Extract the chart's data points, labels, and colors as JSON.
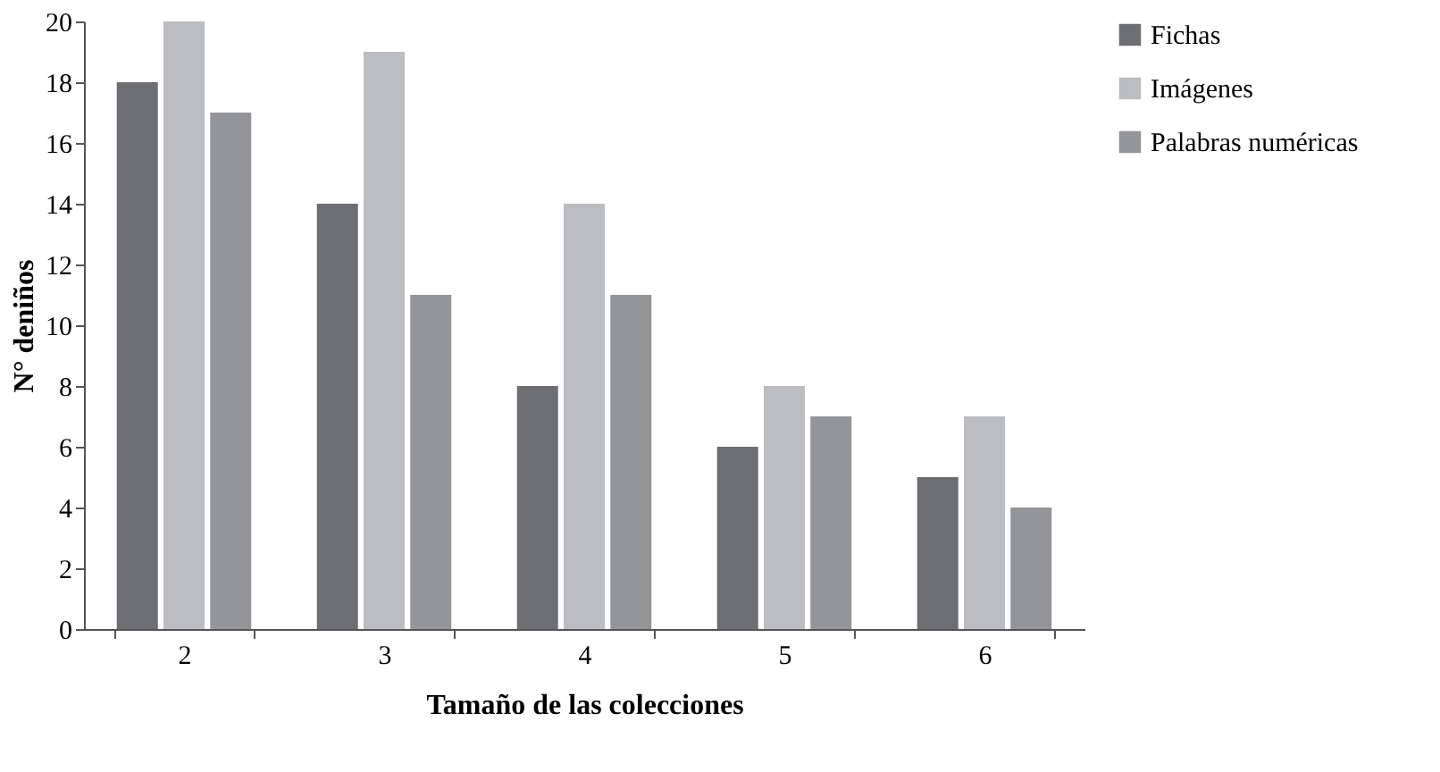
{
  "chart_data": {
    "type": "bar",
    "xlabel": "Tamaño de las colecciones",
    "ylabel": "N° deniños",
    "categories": [
      "2",
      "3",
      "4",
      "5",
      "6"
    ],
    "series": [
      {
        "name": "Fichas",
        "color": "#6d6e71",
        "values": [
          18,
          14,
          8,
          6,
          5
        ]
      },
      {
        "name": "Imágenes",
        "color": "#bcbdc0",
        "values": [
          20,
          19,
          14,
          8,
          7
        ]
      },
      {
        "name": "Palabras numéricas",
        "color": "#939598",
        "values": [
          17,
          11,
          11,
          7,
          4
        ]
      }
    ],
    "ylim": [
      0,
      20
    ],
    "yticks": [
      0,
      2,
      4,
      6,
      8,
      10,
      12,
      14,
      16,
      18,
      20
    ],
    "legend": "right"
  }
}
